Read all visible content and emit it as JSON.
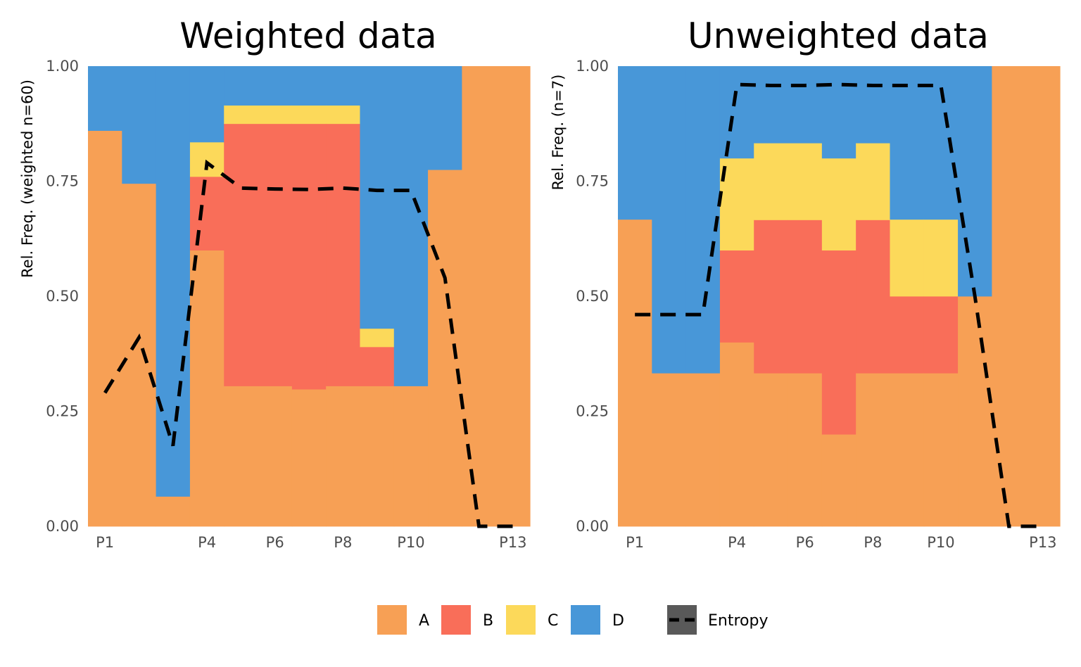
{
  "colors": {
    "A": "#F7A055",
    "B": "#F96E59",
    "C": "#FCD95A",
    "D": "#4897D8",
    "entropy": "#000000",
    "entropy_key_bg": "#595959"
  },
  "legend": {
    "items": [
      {
        "key": "A",
        "label": "A"
      },
      {
        "key": "B",
        "label": "B"
      },
      {
        "key": "C",
        "label": "C"
      },
      {
        "key": "D",
        "label": "D"
      }
    ],
    "entropy_label": "Entropy",
    "placement": "bottom"
  },
  "chart_data": [
    {
      "type": "area",
      "title": "Weighted data",
      "ylabel": "Rel. Freq. (weighted n=60)",
      "xlabel": "",
      "ylim": [
        0,
        1
      ],
      "yticks": [
        "0.00",
        "0.25",
        "0.50",
        "0.75",
        "1.00"
      ],
      "xtick_labels": [
        "P1",
        "P4",
        "P6",
        "P8",
        "P10",
        "P13"
      ],
      "xtick_positions": [
        1,
        4,
        6,
        8,
        10,
        13
      ],
      "x": [
        1,
        2,
        3,
        4,
        5,
        6,
        7,
        8,
        9,
        10,
        11,
        12,
        13
      ],
      "series": [
        {
          "name": "A",
          "values": [
            0.86,
            0.745,
            0.065,
            0.6,
            0.305,
            0.305,
            0.298,
            0.305,
            0.305,
            0.305,
            0.775,
            1.0,
            1.0
          ]
        },
        {
          "name": "B",
          "values": [
            0,
            0,
            0,
            0.16,
            0.57,
            0.57,
            0.577,
            0.57,
            0.085,
            0,
            0,
            0,
            0
          ]
        },
        {
          "name": "C",
          "values": [
            0,
            0,
            0,
            0.075,
            0.04,
            0.04,
            0.04,
            0.04,
            0.04,
            0,
            0,
            0,
            0
          ]
        },
        {
          "name": "D",
          "values": [
            0.14,
            0.255,
            0.935,
            0.165,
            0.085,
            0.085,
            0.085,
            0.085,
            0.57,
            0.695,
            0.225,
            0,
            0
          ]
        }
      ],
      "entropy": [
        0.29,
        0.41,
        0.175,
        0.79,
        0.735,
        0.733,
        0.732,
        0.735,
        0.73,
        0.73,
        0.54,
        0,
        0
      ]
    },
    {
      "type": "area",
      "title": "Unweighted data",
      "ylabel": "Rel. Freq. (n=7)",
      "xlabel": "",
      "ylim": [
        0,
        1
      ],
      "yticks": [
        "0.00",
        "0.25",
        "0.50",
        "0.75",
        "1.00"
      ],
      "xtick_labels": [
        "P1",
        "P4",
        "P6",
        "P8",
        "P10",
        "P13"
      ],
      "xtick_positions": [
        1,
        4,
        6,
        8,
        10,
        13
      ],
      "x": [
        1,
        2,
        3,
        4,
        5,
        6,
        7,
        8,
        9,
        10,
        11,
        12,
        13
      ],
      "series": [
        {
          "name": "A",
          "values": [
            0.667,
            0.333,
            0.333,
            0.4,
            0.333,
            0.333,
            0.2,
            0.333,
            0.333,
            0.333,
            0.5,
            1.0,
            1.0
          ]
        },
        {
          "name": "B",
          "values": [
            0,
            0,
            0,
            0.2,
            0.333,
            0.333,
            0.4,
            0.333,
            0.167,
            0.167,
            0,
            0,
            0
          ]
        },
        {
          "name": "C",
          "values": [
            0,
            0,
            0,
            0.2,
            0.167,
            0.167,
            0.2,
            0.167,
            0.167,
            0.167,
            0,
            0,
            0
          ]
        },
        {
          "name": "D",
          "values": [
            0.333,
            0.667,
            0.667,
            0.2,
            0.167,
            0.167,
            0.2,
            0.167,
            0.333,
            0.333,
            0.5,
            0,
            0
          ]
        }
      ],
      "entropy": [
        0.46,
        0.46,
        0.46,
        0.96,
        0.958,
        0.958,
        0.96,
        0.958,
        0.958,
        0.958,
        0.5,
        0,
        0
      ]
    }
  ]
}
